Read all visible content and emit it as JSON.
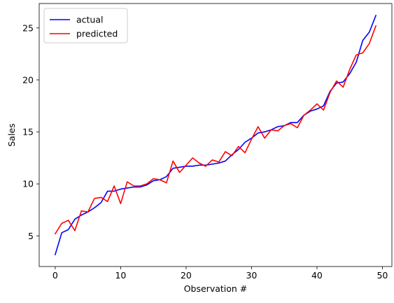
{
  "chart_data": {
    "type": "line",
    "title": "",
    "xlabel": "Observation #",
    "ylabel": "Sales",
    "xlim": [
      -2.45,
      51.45
    ],
    "ylim": [
      2.05,
      27.35
    ],
    "x_ticks": [
      0,
      10,
      20,
      30,
      40,
      50
    ],
    "y_ticks": [
      5,
      10,
      15,
      20,
      25
    ],
    "grid": false,
    "legend": "top-left",
    "x": [
      0,
      1,
      2,
      3,
      4,
      5,
      6,
      7,
      8,
      9,
      10,
      11,
      12,
      13,
      14,
      15,
      16,
      17,
      18,
      19,
      20,
      21,
      22,
      23,
      24,
      25,
      26,
      27,
      28,
      29,
      30,
      31,
      32,
      33,
      34,
      35,
      36,
      37,
      38,
      39,
      40,
      41,
      42,
      43,
      44,
      45,
      46,
      47,
      48,
      49
    ],
    "series": [
      {
        "name": "actual",
        "color": "#0000ff",
        "values": [
          3.2,
          5.3,
          5.6,
          6.6,
          7.0,
          7.3,
          7.7,
          8.2,
          9.3,
          9.3,
          9.5,
          9.6,
          9.7,
          9.7,
          9.9,
          10.3,
          10.4,
          10.7,
          11.5,
          11.6,
          11.7,
          11.7,
          11.8,
          11.8,
          11.9,
          12.0,
          12.2,
          12.8,
          13.3,
          14.0,
          14.4,
          14.9,
          15.0,
          15.2,
          15.5,
          15.6,
          15.9,
          15.9,
          16.6,
          17.0,
          17.2,
          17.5,
          18.9,
          19.7,
          19.8,
          20.6,
          21.7,
          23.8,
          24.6,
          26.2
        ]
      },
      {
        "name": "predicted",
        "color": "#ff0000",
        "values": [
          5.2,
          6.2,
          6.5,
          5.5,
          7.4,
          7.3,
          8.6,
          8.7,
          8.3,
          9.8,
          8.1,
          10.2,
          9.8,
          9.8,
          10.0,
          10.5,
          10.4,
          10.1,
          12.2,
          11.1,
          11.8,
          12.5,
          12.0,
          11.7,
          12.3,
          12.1,
          13.1,
          12.7,
          13.6,
          13.0,
          14.3,
          15.5,
          14.4,
          15.2,
          15.1,
          15.6,
          15.8,
          15.4,
          16.6,
          17.1,
          17.7,
          17.1,
          18.8,
          19.9,
          19.3,
          21.0,
          22.4,
          22.6,
          23.5,
          25.2
        ]
      }
    ]
  }
}
